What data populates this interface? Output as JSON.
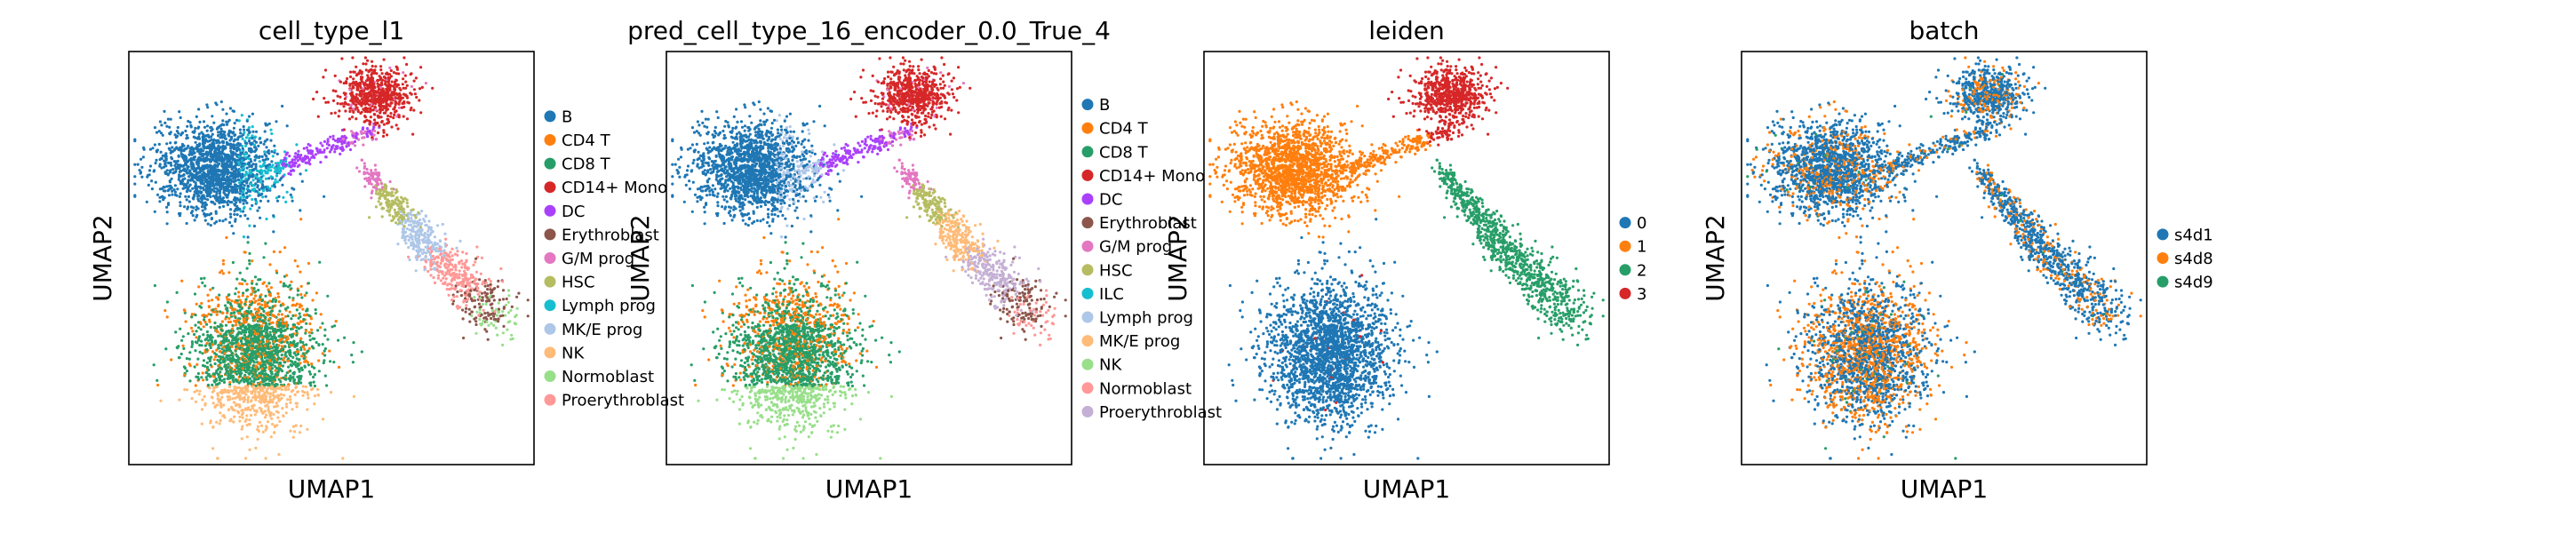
{
  "figure": {
    "background": "#ffffff"
  },
  "chart_data": [
    {
      "type": "scatter",
      "title": "cell_type_l1",
      "xlabel": "UMAP1",
      "ylabel": "UMAP2",
      "grid": false,
      "legend_position": "right",
      "legend": [
        {
          "label": "B",
          "color": "#1f77b4"
        },
        {
          "label": "CD4 T",
          "color": "#ff7f0e"
        },
        {
          "label": "CD8 T",
          "color": "#279e68"
        },
        {
          "label": "CD14+ Mono",
          "color": "#d62728"
        },
        {
          "label": "DC",
          "color": "#aa40fc"
        },
        {
          "label": "Erythroblast",
          "color": "#8c564b"
        },
        {
          "label": "G/M prog",
          "color": "#e377c2"
        },
        {
          "label": "HSC",
          "color": "#b5bd61"
        },
        {
          "label": "Lymph prog",
          "color": "#17becf"
        },
        {
          "label": "MK/E prog",
          "color": "#aec7e8"
        },
        {
          "label": "NK",
          "color": "#ffbb78"
        },
        {
          "label": "Normoblast",
          "color": "#98df8a"
        },
        {
          "label": "Proerythroblast",
          "color": "#ff9896"
        }
      ]
    },
    {
      "type": "scatter",
      "title": "pred_cell_type_16_encoder_0.0_True_4",
      "xlabel": "UMAP1",
      "ylabel": "UMAP2",
      "grid": false,
      "legend_position": "right",
      "legend": [
        {
          "label": "B",
          "color": "#1f77b4"
        },
        {
          "label": "CD4 T",
          "color": "#ff7f0e"
        },
        {
          "label": "CD8 T",
          "color": "#279e68"
        },
        {
          "label": "CD14+ Mono",
          "color": "#d62728"
        },
        {
          "label": "DC",
          "color": "#aa40fc"
        },
        {
          "label": "Erythroblast",
          "color": "#8c564b"
        },
        {
          "label": "G/M prog",
          "color": "#e377c2"
        },
        {
          "label": "HSC",
          "color": "#b5bd61"
        },
        {
          "label": "ILC",
          "color": "#17becf"
        },
        {
          "label": "Lymph prog",
          "color": "#aec7e8"
        },
        {
          "label": "MK/E prog",
          "color": "#ffbb78"
        },
        {
          "label": "NK",
          "color": "#98df8a"
        },
        {
          "label": "Normoblast",
          "color": "#ff9896"
        },
        {
          "label": "Proerythroblast",
          "color": "#c5b0d5"
        }
      ]
    },
    {
      "type": "scatter",
      "title": "leiden",
      "xlabel": "UMAP1",
      "ylabel": "UMAP2",
      "grid": false,
      "legend_position": "right",
      "legend": [
        {
          "label": "0",
          "color": "#1f77b4"
        },
        {
          "label": "1",
          "color": "#ff7f0e"
        },
        {
          "label": "2",
          "color": "#279e68"
        },
        {
          "label": "3",
          "color": "#d62728"
        }
      ]
    },
    {
      "type": "scatter",
      "title": "batch",
      "xlabel": "UMAP1",
      "ylabel": "UMAP2",
      "grid": false,
      "legend_position": "right",
      "legend": [
        {
          "label": "s4d1",
          "color": "#1f77b4"
        },
        {
          "label": "s4d8",
          "color": "#ff7f0e"
        },
        {
          "label": "s4d9",
          "color": "#279e68"
        }
      ]
    }
  ]
}
